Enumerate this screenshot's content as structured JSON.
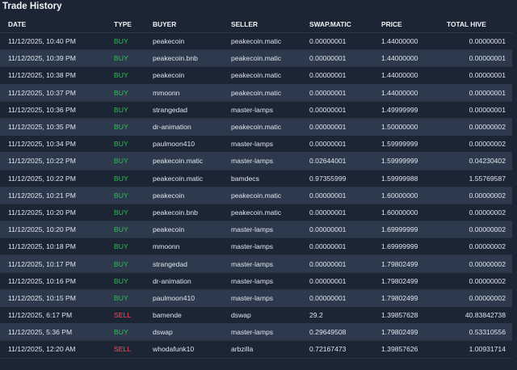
{
  "panel": {
    "title": "Trade History"
  },
  "columns": {
    "date": "DATE",
    "type": "TYPE",
    "buyer": "BUYER",
    "seller": "SELLER",
    "amount": "SWAP.MATIC",
    "price": "PRICE",
    "total": "TOTAL HIVE"
  },
  "colors": {
    "buy": "#27c24c",
    "sell": "#ff4c5b",
    "row_alt": "#2d3a4d",
    "background": "#1c2533"
  },
  "rows": [
    {
      "date": "11/12/2025, 10:40 PM",
      "type": "BUY",
      "buyer": "peakecoin",
      "seller": "peakecoin.matic",
      "amount": "0.00000001",
      "price": "1.44000000",
      "total": "0.00000001"
    },
    {
      "date": "11/12/2025, 10:39 PM",
      "type": "BUY",
      "buyer": "peakecoin.bnb",
      "seller": "peakecoin.matic",
      "amount": "0.00000001",
      "price": "1.44000000",
      "total": "0.00000001"
    },
    {
      "date": "11/12/2025, 10:38 PM",
      "type": "BUY",
      "buyer": "peakecoin",
      "seller": "peakecoin.matic",
      "amount": "0.00000001",
      "price": "1.44000000",
      "total": "0.00000001"
    },
    {
      "date": "11/12/2025, 10:37 PM",
      "type": "BUY",
      "buyer": "mmoonn",
      "seller": "peakecoin.matic",
      "amount": "0.00000001",
      "price": "1.44000000",
      "total": "0.00000001"
    },
    {
      "date": "11/12/2025, 10:36 PM",
      "type": "BUY",
      "buyer": "strangedad",
      "seller": "master-lamps",
      "amount": "0.00000001",
      "price": "1.49999999",
      "total": "0.00000001"
    },
    {
      "date": "11/12/2025, 10:35 PM",
      "type": "BUY",
      "buyer": "dr-animation",
      "seller": "peakecoin.matic",
      "amount": "0.00000001",
      "price": "1.50000000",
      "total": "0.00000002"
    },
    {
      "date": "11/12/2025, 10:34 PM",
      "type": "BUY",
      "buyer": "paulmoon410",
      "seller": "master-lamps",
      "amount": "0.00000001",
      "price": "1.59999999",
      "total": "0.00000002"
    },
    {
      "date": "11/12/2025, 10:22 PM",
      "type": "BUY",
      "buyer": "peakecoin.matic",
      "seller": "master-lamps",
      "amount": "0.02644001",
      "price": "1.59999999",
      "total": "0.04230402"
    },
    {
      "date": "11/12/2025, 10:22 PM",
      "type": "BUY",
      "buyer": "peakecoin.matic",
      "seller": "bamdecs",
      "amount": "0.97355999",
      "price": "1.59999988",
      "total": "1.55769587"
    },
    {
      "date": "11/12/2025, 10:21 PM",
      "type": "BUY",
      "buyer": "peakecoin",
      "seller": "peakecoin.matic",
      "amount": "0.00000001",
      "price": "1.60000000",
      "total": "0.00000002"
    },
    {
      "date": "11/12/2025, 10:20 PM",
      "type": "BUY",
      "buyer": "peakecoin.bnb",
      "seller": "peakecoin.matic",
      "amount": "0.00000001",
      "price": "1.60000000",
      "total": "0.00000002"
    },
    {
      "date": "11/12/2025, 10:20 PM",
      "type": "BUY",
      "buyer": "peakecoin",
      "seller": "master-lamps",
      "amount": "0.00000001",
      "price": "1.69999999",
      "total": "0.00000002"
    },
    {
      "date": "11/12/2025, 10:18 PM",
      "type": "BUY",
      "buyer": "mmoonn",
      "seller": "master-lamps",
      "amount": "0.00000001",
      "price": "1.69999999",
      "total": "0.00000002"
    },
    {
      "date": "11/12/2025, 10:17 PM",
      "type": "BUY",
      "buyer": "strangedad",
      "seller": "master-lamps",
      "amount": "0.00000001",
      "price": "1.79802499",
      "total": "0.00000002"
    },
    {
      "date": "11/12/2025, 10:16 PM",
      "type": "BUY",
      "buyer": "dr-animation",
      "seller": "master-lamps",
      "amount": "0.00000001",
      "price": "1.79802499",
      "total": "0.00000002"
    },
    {
      "date": "11/12/2025, 10:15 PM",
      "type": "BUY",
      "buyer": "paulmoon410",
      "seller": "master-lamps",
      "amount": "0.00000001",
      "price": "1.79802499",
      "total": "0.00000002"
    },
    {
      "date": "11/12/2025, 6:17 PM",
      "type": "SELL",
      "buyer": "bamende",
      "seller": "dswap",
      "amount": "29.2",
      "price": "1.39857628",
      "total": "40.83842738"
    },
    {
      "date": "11/12/2025, 5:36 PM",
      "type": "BUY",
      "buyer": "dswap",
      "seller": "master-lamps",
      "amount": "0.29649508",
      "price": "1.79802499",
      "total": "0.53310556"
    },
    {
      "date": "11/12/2025, 12:20 AM",
      "type": "SELL",
      "buyer": "whodafunk10",
      "seller": "arbzilla",
      "amount": "0.72167473",
      "price": "1.39857626",
      "total": "1.00931714"
    }
  ]
}
